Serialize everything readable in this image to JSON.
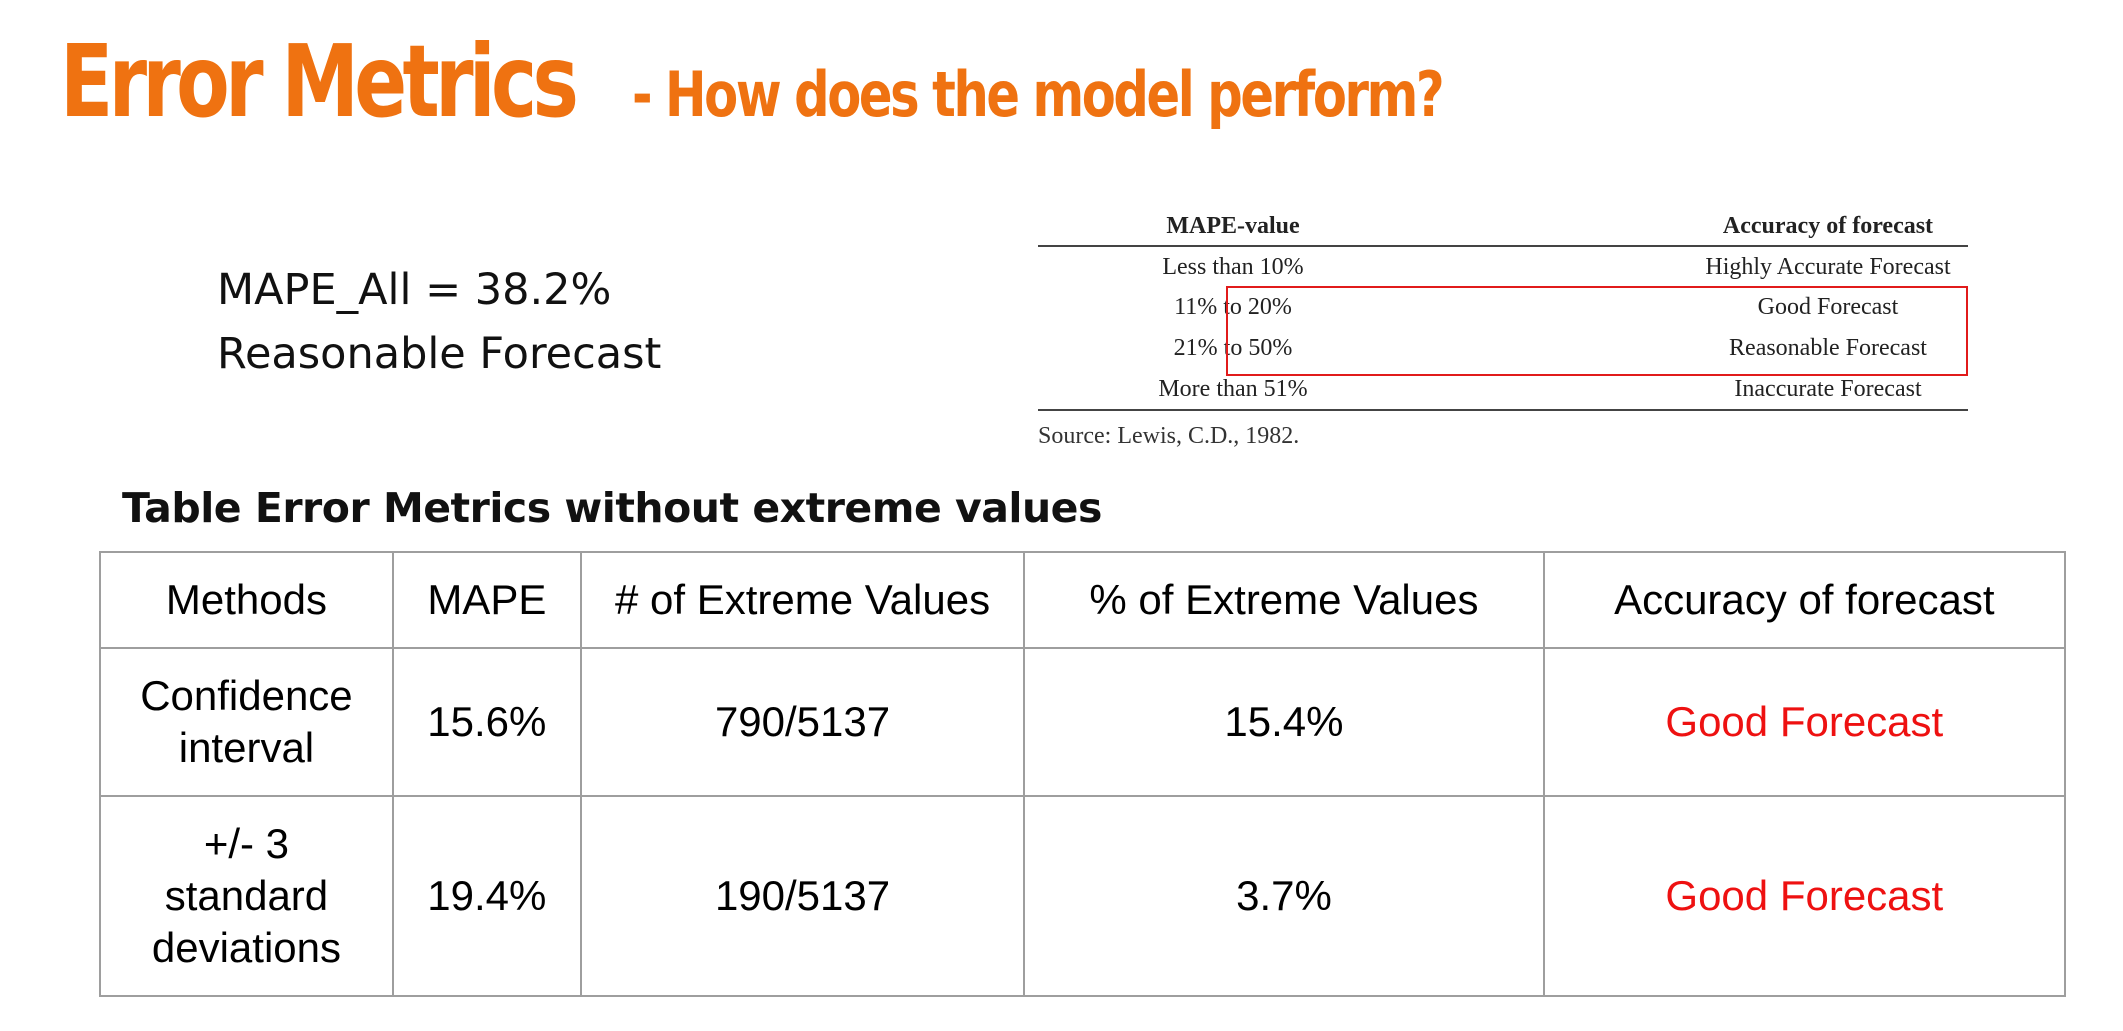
{
  "title": {
    "main": "Error Metrics",
    "subtitle": "- How does the model perform?"
  },
  "summary": {
    "mape_line": "MAPE_All = 38.2%",
    "accuracy_line": "Reasonable Forecast"
  },
  "reference_table": {
    "headers": [
      "MAPE-value",
      "Accuracy of forecast"
    ],
    "rows": [
      [
        "Less than 10%",
        "Highly Accurate Forecast"
      ],
      [
        "11% to 20%",
        "Good Forecast"
      ],
      [
        "21% to 50%",
        "Reasonable Forecast"
      ],
      [
        "More than 51%",
        "Inaccurate Forecast"
      ]
    ],
    "highlighted_rows": [
      1,
      2
    ],
    "source": "Source: Lewis, C.D., 1982."
  },
  "section_title": "Table Error Metrics without extreme values",
  "metrics_table": {
    "headers": [
      "Methods",
      "MAPE",
      "# of Extreme Values",
      "% of Extreme Values",
      "Accuracy of forecast"
    ],
    "rows": [
      {
        "method_lines": [
          "Confidence",
          "interval"
        ],
        "mape": "15.6%",
        "extreme_count": "790/5137",
        "extreme_pct": "15.4%",
        "accuracy": "Good Forecast"
      },
      {
        "method_lines": [
          "+/- 3",
          "standard",
          "deviations"
        ],
        "mape": "19.4%",
        "extreme_count": "190/5137",
        "extreme_pct": "3.7%",
        "accuracy": "Good Forecast"
      }
    ]
  },
  "colors": {
    "title": "#ef7211",
    "accuracy_text": "#ee1111",
    "highlight_box": "#e11b1b",
    "table_border": "#9e9e9e"
  }
}
